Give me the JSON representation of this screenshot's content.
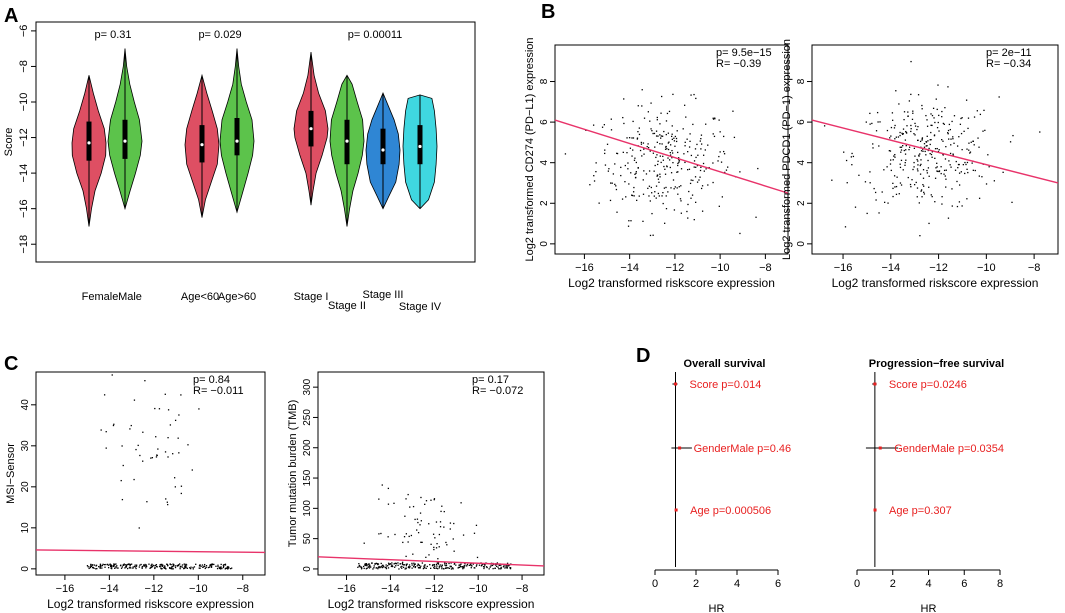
{
  "chart_data": [
    {
      "panel": "A",
      "type": "violin",
      "ylabel": "Score",
      "ylim": [
        -19,
        -5.5
      ],
      "yticks": [
        -6,
        -8,
        -10,
        -12,
        -14,
        -16,
        -18
      ],
      "groups": [
        {
          "name": "Female",
          "color": "#de4f63",
          "center": -12.3,
          "min": -17.0,
          "max": -8.5,
          "q1": -13.3,
          "q3": -11.1,
          "widths": [
            [
              -17.0,
              0.0
            ],
            [
              -16.0,
              0.15
            ],
            [
              -15.0,
              0.35
            ],
            [
              -14.0,
              0.72
            ],
            [
              -13.0,
              0.98
            ],
            [
              -12.3,
              1.0
            ],
            [
              -11.5,
              0.9
            ],
            [
              -10.5,
              0.55
            ],
            [
              -9.5,
              0.25
            ],
            [
              -8.5,
              0.0
            ]
          ]
        },
        {
          "name": "Male",
          "color": "#5cc34b",
          "center": -12.2,
          "min": -16.0,
          "max": -7.0,
          "q1": -13.2,
          "q3": -11.0,
          "widths": [
            [
              -16.0,
              0.0
            ],
            [
              -15.0,
              0.3
            ],
            [
              -14.0,
              0.62
            ],
            [
              -13.0,
              0.9
            ],
            [
              -12.2,
              1.0
            ],
            [
              -11.0,
              0.85
            ],
            [
              -10.0,
              0.55
            ],
            [
              -9.0,
              0.28
            ],
            [
              -8.0,
              0.1
            ],
            [
              -7.0,
              0.0
            ]
          ]
        },
        {
          "name": "Age<60",
          "color": "#de4f63",
          "center": -12.4,
          "min": -16.5,
          "max": -8.5,
          "q1": -13.4,
          "q3": -11.3,
          "widths": [
            [
              -16.5,
              0.0
            ],
            [
              -15.5,
              0.2
            ],
            [
              -14.5,
              0.55
            ],
            [
              -13.5,
              0.9
            ],
            [
              -12.4,
              1.0
            ],
            [
              -11.5,
              0.9
            ],
            [
              -10.5,
              0.6
            ],
            [
              -9.5,
              0.28
            ],
            [
              -8.5,
              0.0
            ]
          ]
        },
        {
          "name": "Age>60",
          "color": "#5cc34b",
          "center": -12.2,
          "min": -16.2,
          "max": -7.0,
          "q1": -13.0,
          "q3": -10.9,
          "widths": [
            [
              -16.2,
              0.0
            ],
            [
              -15.2,
              0.3
            ],
            [
              -14.0,
              0.65
            ],
            [
              -13.0,
              0.92
            ],
            [
              -12.2,
              1.0
            ],
            [
              -11.0,
              0.88
            ],
            [
              -10.0,
              0.55
            ],
            [
              -9.0,
              0.25
            ],
            [
              -8.0,
              0.1
            ],
            [
              -7.0,
              0.0
            ]
          ]
        },
        {
          "name": "Stage I",
          "color": "#de4f63",
          "center": -11.5,
          "min": -15.8,
          "max": -7.2,
          "q1": -12.5,
          "q3": -10.5,
          "widths": [
            [
              -15.8,
              0.0
            ],
            [
              -15.0,
              0.12
            ],
            [
              -14.0,
              0.3
            ],
            [
              -13.0,
              0.65
            ],
            [
              -12.0,
              0.95
            ],
            [
              -11.5,
              1.0
            ],
            [
              -10.5,
              0.85
            ],
            [
              -9.5,
              0.45
            ],
            [
              -8.5,
              0.18
            ],
            [
              -7.2,
              0.0
            ]
          ]
        },
        {
          "name": "Stage II",
          "color": "#5cc34b",
          "center": -12.2,
          "min": -17.0,
          "max": -8.5,
          "q1": -13.5,
          "q3": -11.0,
          "widths": [
            [
              -17.0,
              0.0
            ],
            [
              -16.0,
              0.15
            ],
            [
              -15.0,
              0.35
            ],
            [
              -14.0,
              0.65
            ],
            [
              -13.0,
              0.9
            ],
            [
              -12.2,
              1.0
            ],
            [
              -11.0,
              0.92
            ],
            [
              -10.0,
              0.6
            ],
            [
              -9.0,
              0.3
            ],
            [
              -8.5,
              0.0
            ]
          ]
        },
        {
          "name": "Stage III",
          "color": "#2f86d4",
          "center": -12.7,
          "min": -16.0,
          "max": -9.5,
          "q1": -13.5,
          "q3": -11.5,
          "widths": [
            [
              -16.0,
              0.0
            ],
            [
              -15.3,
              0.35
            ],
            [
              -14.5,
              0.75
            ],
            [
              -13.5,
              0.95
            ],
            [
              -12.7,
              1.0
            ],
            [
              -11.8,
              0.9
            ],
            [
              -11.0,
              0.65
            ],
            [
              -10.3,
              0.35
            ],
            [
              -9.5,
              0.0
            ]
          ]
        },
        {
          "name": "Stage IV",
          "color": "#3fd7e0",
          "center": -12.5,
          "min": -16.0,
          "max": -9.6,
          "q1": -13.5,
          "q3": -11.3,
          "widths": [
            [
              -16.0,
              0.0
            ],
            [
              -15.5,
              0.5
            ],
            [
              -14.5,
              0.85
            ],
            [
              -13.5,
              0.95
            ],
            [
              -12.5,
              1.0
            ],
            [
              -11.5,
              0.95
            ],
            [
              -10.5,
              0.85
            ],
            [
              -9.8,
              0.7
            ],
            [
              -9.6,
              0.0
            ]
          ]
        }
      ],
      "pvalues": [
        "p= 0.31",
        "p= 0.029",
        "p= 0.00011"
      ],
      "xlabels": [
        "Female",
        "Male",
        "Age<60",
        "Age>60",
        "Stage I",
        "Stage II",
        "Stage III",
        "Stage IV"
      ]
    },
    {
      "panel": "B-left",
      "type": "scatter",
      "xlabel": "Log2 transformed riskscore expression",
      "ylabel": "Log2 transformed CD274 (PD−L1) expression",
      "xlim": [
        -17.3,
        -7
      ],
      "ylim": [
        -0.5,
        9.8
      ],
      "xticks": [
        -16,
        -14,
        -12,
        -10,
        -8
      ],
      "yticks": [
        0,
        2,
        4,
        6,
        8
      ],
      "xtick_labels": [
        "−16",
        "−14",
        "−12",
        "−10",
        "−8"
      ],
      "fit_line": {
        "x": [
          -17.3,
          -7
        ],
        "y": [
          6.1,
          2.5
        ]
      },
      "cluster": {
        "n": 320,
        "x_mean": -12.5,
        "x_sd": 1.5,
        "y_mean": 4.1,
        "y_sd": 1.4
      },
      "p_text": "p= 9.5e−15",
      "r_text": "R= −0.39"
    },
    {
      "panel": "B-right",
      "type": "scatter",
      "xlabel": "Log2 transformed riskscore expression",
      "ylabel": "Log2 transformed PDCD1 (PD−1) expression",
      "xlim": [
        -17.3,
        -7
      ],
      "ylim": [
        -0.5,
        9.8
      ],
      "xticks": [
        -16,
        -14,
        -12,
        -10,
        -8
      ],
      "yticks": [
        0,
        2,
        4,
        6,
        8
      ],
      "xtick_labels": [
        "−16",
        "−14",
        "−12",
        "−10",
        "−8"
      ],
      "fit_line": {
        "x": [
          -17.3,
          -7
        ],
        "y": [
          6.1,
          3.0
        ]
      },
      "cluster": {
        "n": 340,
        "x_mean": -12.5,
        "x_sd": 1.5,
        "y_mean": 4.4,
        "y_sd": 1.4
      },
      "p_text": "p= 2e−11",
      "r_text": "R= −0.34"
    },
    {
      "panel": "C-left",
      "type": "scatter",
      "xlabel": "Log2 transformed riskscore expression",
      "ylabel": "MSI−Sensor",
      "xlim": [
        -17.3,
        -7
      ],
      "ylim": [
        -1.5,
        48
      ],
      "xticks": [
        -16,
        -14,
        -12,
        -10,
        -8
      ],
      "yticks": [
        0,
        10,
        20,
        30,
        40
      ],
      "xtick_labels": [
        "−16",
        "−14",
        "−12",
        "−10",
        "−8"
      ],
      "fit_line": {
        "x": [
          -17.3,
          -7
        ],
        "y": [
          4.6,
          4.0
        ]
      },
      "baseline": {
        "n": 260,
        "x_from": -15,
        "x_to": -8.5,
        "y_max": 1.2
      },
      "cluster": {
        "n": 55,
        "x_mean": -12.2,
        "x_sd": 1.0,
        "y_mean": 30,
        "y_sd": 9
      },
      "p_text": "p= 0.84",
      "r_text": "R= −0.011"
    },
    {
      "panel": "C-right",
      "type": "scatter",
      "xlabel": "Log2 transformed riskscore expression",
      "ylabel": "Tumor mutation burden (TMB)",
      "xlim": [
        -17.3,
        -7
      ],
      "ylim": [
        -10,
        325
      ],
      "xticks": [
        -16,
        -14,
        -12,
        -10,
        -8
      ],
      "yticks": [
        0,
        50,
        100,
        150,
        200,
        250,
        300
      ],
      "xtick_labels": [
        "−16",
        "−14",
        "−12",
        "−10",
        "−8"
      ],
      "fit_line": {
        "x": [
          -17.3,
          -7
        ],
        "y": [
          20,
          5
        ]
      },
      "baseline": {
        "n": 280,
        "x_from": -15.5,
        "x_to": -8.5,
        "y_max": 10
      },
      "cluster": {
        "n": 80,
        "x_mean": -12.3,
        "x_sd": 1.3,
        "y_mean": 60,
        "y_sd": 35
      },
      "p_text": "p= 0.17",
      "r_text": "R= −0.072"
    },
    {
      "panel": "D-left",
      "type": "forest",
      "title": "Overall survival",
      "xlabel": "HR",
      "xlim": [
        0,
        6
      ],
      "xticks": [
        0,
        2,
        4,
        6
      ],
      "ref_line": 1,
      "rows": [
        {
          "label": "Score   p=0.014",
          "hr": 1.0,
          "lo": 0.85,
          "hi": 1.1
        },
        {
          "label": "GenderMale   p=0.46",
          "hr": 1.2,
          "lo": 0.8,
          "hi": 1.8
        },
        {
          "label": "Age   p=0.000506",
          "hr": 1.03,
          "lo": 1.0,
          "hi": 1.06
        }
      ]
    },
    {
      "panel": "D-right",
      "type": "forest",
      "title": "Progression−free survival",
      "xlabel": "HR",
      "xlim": [
        0,
        8
      ],
      "xticks": [
        0,
        2,
        4,
        6,
        8
      ],
      "ref_line": 1,
      "rows": [
        {
          "label": "Score   p=0.0246",
          "hr": 1.0,
          "lo": 0.85,
          "hi": 1.1
        },
        {
          "label": "GenderMale   p=0.0354",
          "hr": 1.3,
          "lo": 0.5,
          "hi": 2.3
        },
        {
          "label": "Age   p=0.307",
          "hr": 1.01,
          "lo": 0.99,
          "hi": 1.03
        }
      ]
    }
  ],
  "panel_letters": [
    "A",
    "B",
    "C",
    "D"
  ]
}
